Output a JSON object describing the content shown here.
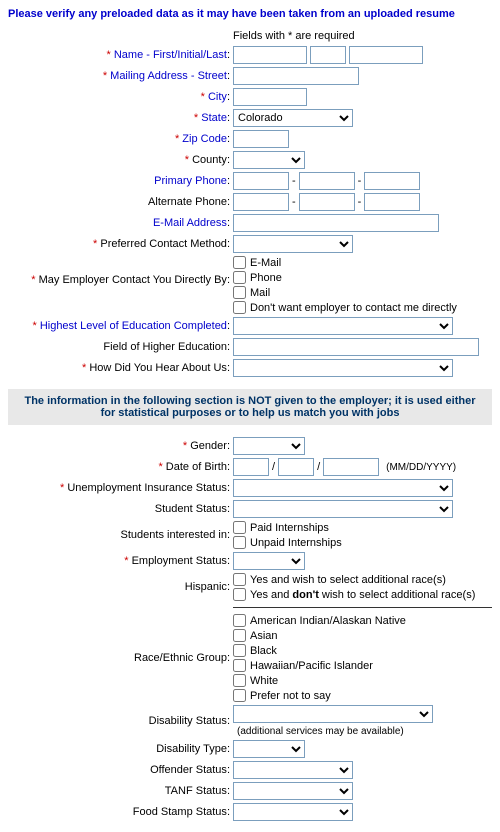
{
  "header_note": "Please verify any preloaded data as it may have been taken from an uploaded resume",
  "required_note": "Fields with * are required",
  "labels": {
    "name": "Name - First/Initial/Last",
    "street": "Mailing Address - Street",
    "city": "City",
    "state": "State",
    "zip": "Zip Code",
    "county": "County",
    "primary_phone": "Primary Phone",
    "alternate_phone": "Alternate Phone",
    "email": "E-Mail Address",
    "preferred_contact": "Preferred Contact Method",
    "employer_contact": "May Employer Contact You Directly By",
    "education_level": "Highest Level of Education Completed",
    "higher_ed_field": "Field of Higher Education",
    "hear_about": "How Did You Hear About Us",
    "gender": "Gender",
    "dob": "Date of Birth",
    "ui_status": "Unemployment Insurance Status",
    "student_status": "Student Status",
    "students_interested": "Students interested in",
    "employment_status": "Employment Status",
    "hispanic": "Hispanic",
    "race_group": "Race/Ethnic Group",
    "disability_status": "Disability Status",
    "disability_type": "Disability Type",
    "offender_status": "Offender Status",
    "tanf_status": "TANF Status",
    "food_stamp_status": "Food Stamp Status"
  },
  "values": {
    "state_selected": "Colorado"
  },
  "checkboxes": {
    "emp_email": "E-Mail",
    "emp_phone": "Phone",
    "emp_mail": "Mail",
    "emp_none": "Don't want employer to contact me directly",
    "paid_intern": "Paid Internships",
    "unpaid_intern": "Unpaid Internships",
    "hispanic_yes": "Yes and wish to select additional race(s)",
    "hispanic_no": "Yes and don't wish to select additional race(s)",
    "race_native": "American Indian/Alaskan Native",
    "race_asian": "Asian",
    "race_black": "Black",
    "race_hawaiian": "Hawaiian/Pacific Islander",
    "race_white": "White",
    "race_prefer_not": "Prefer not to say"
  },
  "section_banner": "The information in the following section is NOT given to the employer; it is used either for statistical purposes or to help us match you with jobs",
  "notes": {
    "dob_format": "(MM/DD/YYYY)",
    "disability_note": "(additional services may be available)"
  }
}
